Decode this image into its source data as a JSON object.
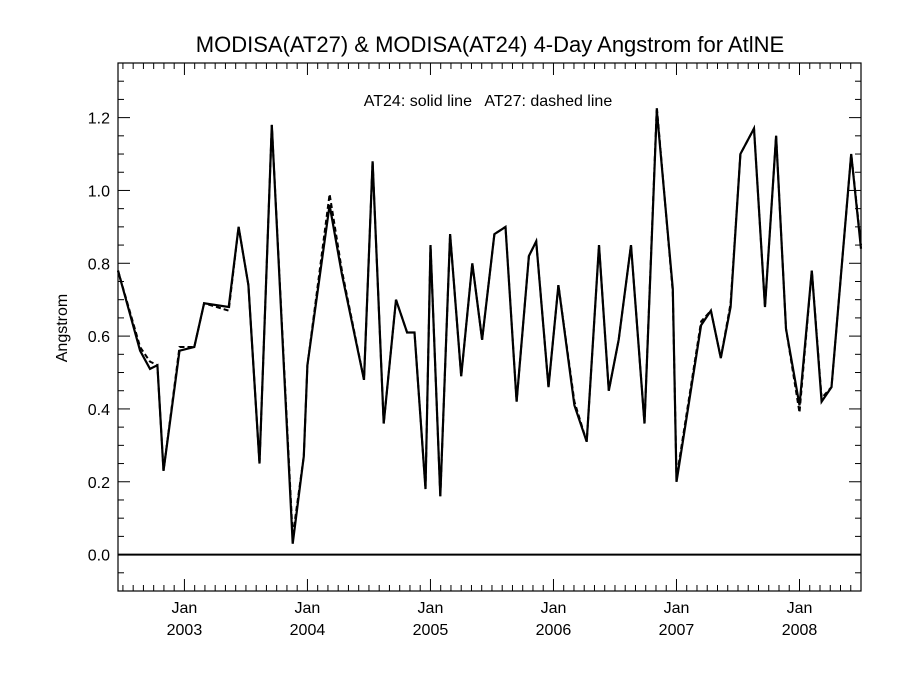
{
  "chart_data": {
    "type": "line",
    "title": "MODISA(AT27) & MODISA(AT24) 4-Day Angstrom for AtlNE",
    "xlabel": "",
    "ylabel": "Angstrom",
    "annotation": "AT24: solid line   AT27: dashed line",
    "xlim": [
      2002.46,
      2008.5
    ],
    "ylim": [
      -0.1,
      1.35
    ],
    "yticks": [
      "0.0",
      "0.2",
      "0.4",
      "0.6",
      "0.8",
      "1.0",
      "1.2"
    ],
    "ytick_values": [
      0.0,
      0.2,
      0.4,
      0.6,
      0.8,
      1.0,
      1.2
    ],
    "xticks": [
      {
        "value": 2003.0,
        "month": "Jan",
        "year": "2003"
      },
      {
        "value": 2004.0,
        "month": "Jan",
        "year": "2004"
      },
      {
        "value": 2005.0,
        "month": "Jan",
        "year": "2005"
      },
      {
        "value": 2006.0,
        "month": "Jan",
        "year": "2006"
      },
      {
        "value": 2007.0,
        "month": "Jan",
        "year": "2007"
      },
      {
        "value": 2008.0,
        "month": "Jan",
        "year": "2008"
      }
    ],
    "reference_line": 0.0,
    "grid": false,
    "series": [
      {
        "style": "solid",
        "x": [
          2002.46,
          2002.64,
          2002.72,
          2002.78,
          2002.83,
          2002.96,
          2003.08,
          2003.16,
          2003.36,
          2003.44,
          2003.52,
          2003.61,
          2003.71,
          2003.88,
          2003.97,
          2004.0,
          2004.18,
          2004.28,
          2004.46,
          2004.53,
          2004.62,
          2004.72,
          2004.81,
          2004.87,
          2004.96,
          2005.0,
          2005.08,
          2005.16,
          2005.25,
          2005.34,
          2005.42,
          2005.52,
          2005.61,
          2005.7,
          2005.8,
          2005.86,
          2005.96,
          2006.04,
          2006.17,
          2006.27,
          2006.37,
          2006.45,
          2006.53,
          2006.63,
          2006.74,
          2006.84,
          2006.97,
          2007.0,
          2007.2,
          2007.28,
          2007.36,
          2007.44,
          2007.52,
          2007.63,
          2007.72,
          2007.81,
          2007.89,
          2008.0,
          2008.1,
          2008.18,
          2008.26,
          2008.42,
          2008.5
        ],
        "y": [
          0.78,
          0.56,
          0.51,
          0.52,
          0.23,
          0.56,
          0.57,
          0.69,
          0.68,
          0.9,
          0.74,
          0.25,
          1.18,
          0.03,
          0.27,
          0.52,
          0.96,
          0.77,
          0.48,
          1.08,
          0.36,
          0.7,
          0.61,
          0.61,
          0.18,
          0.85,
          0.16,
          0.88,
          0.49,
          0.8,
          0.59,
          0.88,
          0.9,
          0.42,
          0.82,
          0.86,
          0.46,
          0.74,
          0.41,
          0.31,
          0.85,
          0.45,
          0.59,
          0.85,
          0.36,
          1.22,
          0.73,
          0.2,
          0.63,
          0.67,
          0.54,
          0.68,
          1.1,
          1.17,
          0.68,
          1.15,
          0.62,
          0.41,
          0.78,
          0.42,
          0.46,
          1.1,
          0.84
        ]
      },
      {
        "style": "dashed",
        "x": [
          2002.46,
          2002.64,
          2002.72,
          2002.78,
          2002.83,
          2002.96,
          2003.08,
          2003.16,
          2003.36,
          2003.44,
          2003.52,
          2003.61,
          2003.71,
          2003.88,
          2003.97,
          2004.0,
          2004.18,
          2004.28,
          2004.46,
          2004.53,
          2004.62,
          2004.72,
          2004.81,
          2004.87,
          2004.96,
          2005.0,
          2005.08,
          2005.16,
          2005.25,
          2005.34,
          2005.42,
          2005.52,
          2005.61,
          2005.7,
          2005.8,
          2005.86,
          2005.96,
          2006.04,
          2006.17,
          2006.27,
          2006.37,
          2006.45,
          2006.53,
          2006.63,
          2006.74,
          2006.84,
          2006.97,
          2007.0,
          2007.2,
          2007.28,
          2007.36,
          2007.44,
          2007.52,
          2007.63,
          2007.72,
          2007.81,
          2007.89,
          2008.0,
          2008.1,
          2008.18,
          2008.26,
          2008.42,
          2008.5
        ],
        "y": [
          0.78,
          0.57,
          0.53,
          0.52,
          0.23,
          0.57,
          0.57,
          0.69,
          0.67,
          0.9,
          0.74,
          0.25,
          1.18,
          0.05,
          0.27,
          0.52,
          0.99,
          0.78,
          0.48,
          1.08,
          0.36,
          0.7,
          0.61,
          0.61,
          0.18,
          0.85,
          0.16,
          0.88,
          0.49,
          0.8,
          0.59,
          0.88,
          0.9,
          0.42,
          0.82,
          0.86,
          0.46,
          0.74,
          0.42,
          0.31,
          0.85,
          0.45,
          0.59,
          0.85,
          0.36,
          1.23,
          0.72,
          0.21,
          0.64,
          0.67,
          0.54,
          0.69,
          1.1,
          1.17,
          0.68,
          1.15,
          0.62,
          0.39,
          0.78,
          0.43,
          0.46,
          1.1,
          0.85
        ]
      }
    ]
  }
}
